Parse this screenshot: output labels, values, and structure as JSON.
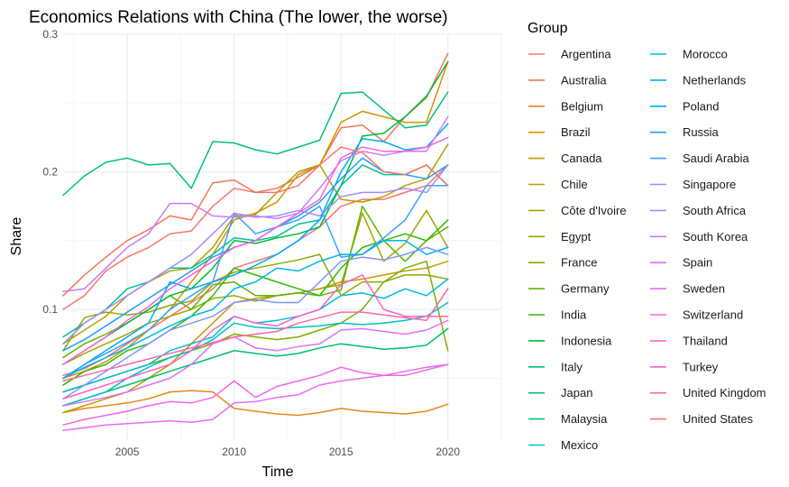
{
  "chart_data": {
    "type": "line",
    "title": "Economics Relations with China (The lower, the worse)",
    "xlabel": "Time",
    "ylabel": "Share",
    "legend_title": "Group",
    "legend_position": "right",
    "grid": true,
    "xlim": [
      2002,
      2022.5
    ],
    "ylim": [
      0.005,
      0.3
    ],
    "x_ticks": [
      2005,
      2010,
      2015,
      2020
    ],
    "y_ticks": [
      0.1,
      0.2,
      0.3
    ],
    "x": [
      2002,
      2003,
      2004,
      2005,
      2006,
      2007,
      2008,
      2009,
      2010,
      2011,
      2012,
      2013,
      2014,
      2015,
      2016,
      2017,
      2018,
      2019,
      2020
    ],
    "series": [
      {
        "name": "Argentina",
        "color": "#F8766D",
        "values": [
          0.052,
          0.057,
          0.065,
          0.075,
          0.085,
          0.095,
          0.105,
          0.115,
          0.13,
          0.135,
          0.14,
          0.15,
          0.16,
          0.175,
          0.18,
          0.18,
          0.185,
          0.19,
          0.205
        ]
      },
      {
        "name": "Australia",
        "color": "#F0765A",
        "values": [
          0.11,
          0.125,
          0.138,
          0.15,
          0.158,
          0.168,
          0.165,
          0.192,
          0.194,
          0.185,
          0.188,
          0.196,
          0.205,
          0.232,
          0.234,
          0.222,
          0.24,
          0.254,
          0.286
        ]
      },
      {
        "name": "Belgium",
        "color": "#E7861B",
        "values": [
          0.025,
          0.028,
          0.03,
          0.032,
          0.035,
          0.04,
          0.041,
          0.04,
          0.028,
          0.026,
          0.024,
          0.023,
          0.025,
          0.028,
          0.026,
          0.025,
          0.024,
          0.026,
          0.031
        ]
      },
      {
        "name": "Brazil",
        "color": "#D29200",
        "values": [
          0.05,
          0.055,
          0.062,
          0.072,
          0.085,
          0.1,
          0.12,
          0.14,
          0.165,
          0.17,
          0.178,
          0.198,
          0.205,
          0.236,
          0.244,
          0.24,
          0.236,
          0.236,
          0.28
        ]
      },
      {
        "name": "Canada",
        "color": "#C09B00",
        "values": [
          0.025,
          0.03,
          0.035,
          0.04,
          0.05,
          0.06,
          0.075,
          0.09,
          0.105,
          0.108,
          0.11,
          0.112,
          0.115,
          0.12,
          0.122,
          0.125,
          0.128,
          0.13,
          0.135
        ]
      },
      {
        "name": "Chile",
        "color": "#B3A000",
        "values": [
          0.075,
          0.085,
          0.095,
          0.11,
          0.12,
          0.128,
          0.13,
          0.145,
          0.168,
          0.169,
          0.185,
          0.2,
          0.205,
          0.18,
          0.178,
          0.182,
          0.19,
          0.195,
          0.22
        ]
      },
      {
        "name": "Côte d'Ivoire",
        "color": "#A3A500",
        "values": [
          0.06,
          0.068,
          0.075,
          0.082,
          0.09,
          0.095,
          0.1,
          0.108,
          0.11,
          0.106,
          0.11,
          0.112,
          0.115,
          0.118,
          0.17,
          0.135,
          0.148,
          0.172,
          0.145
        ]
      },
      {
        "name": "Egypt",
        "color": "#8FAA00",
        "values": [
          0.07,
          0.094,
          0.098,
          0.096,
          0.098,
          0.103,
          0.106,
          0.12,
          0.127,
          0.13,
          0.133,
          0.136,
          0.14,
          0.11,
          0.12,
          0.12,
          0.125,
          0.125,
          0.122
        ]
      },
      {
        "name": "France",
        "color": "#7CAE00",
        "values": [
          0.04,
          0.045,
          0.05,
          0.055,
          0.06,
          0.065,
          0.07,
          0.075,
          0.082,
          0.08,
          0.078,
          0.08,
          0.085,
          0.09,
          0.1,
          0.12,
          0.13,
          0.135,
          0.07
        ]
      },
      {
        "name": "Germany",
        "color": "#5EB300",
        "values": [
          0.065,
          0.075,
          0.082,
          0.09,
          0.1,
          0.11,
          0.1,
          0.118,
          0.12,
          0.11,
          0.11,
          0.112,
          0.11,
          0.114,
          0.175,
          0.15,
          0.135,
          0.15,
          0.16
        ]
      },
      {
        "name": "India",
        "color": "#2EB900",
        "values": [
          0.045,
          0.055,
          0.06,
          0.07,
          0.075,
          0.085,
          0.095,
          0.11,
          0.13,
          0.125,
          0.12,
          0.115,
          0.11,
          0.13,
          0.145,
          0.15,
          0.155,
          0.15,
          0.165
        ]
      },
      {
        "name": "Indonesia",
        "color": "#00BA38",
        "values": [
          0.06,
          0.07,
          0.08,
          0.09,
          0.1,
          0.11,
          0.115,
          0.13,
          0.15,
          0.148,
          0.152,
          0.155,
          0.16,
          0.19,
          0.226,
          0.228,
          0.24,
          0.255,
          0.28
        ]
      },
      {
        "name": "Italy",
        "color": "#00BE67",
        "values": [
          0.03,
          0.035,
          0.04,
          0.045,
          0.05,
          0.055,
          0.06,
          0.065,
          0.07,
          0.068,
          0.066,
          0.068,
          0.072,
          0.075,
          0.073,
          0.071,
          0.072,
          0.074,
          0.086
        ]
      },
      {
        "name": "Japan",
        "color": "#00BF7D",
        "values": [
          0.183,
          0.197,
          0.207,
          0.21,
          0.205,
          0.206,
          0.188,
          0.222,
          0.221,
          0.216,
          0.213,
          0.218,
          0.223,
          0.257,
          0.258,
          0.245,
          0.232,
          0.234,
          0.258
        ]
      },
      {
        "name": "Malaysia",
        "color": "#00C094",
        "values": [
          0.08,
          0.09,
          0.1,
          0.115,
          0.12,
          0.13,
          0.13,
          0.14,
          0.152,
          0.15,
          0.153,
          0.162,
          0.165,
          0.19,
          0.205,
          0.198,
          0.198,
          0.205,
          0.19
        ]
      },
      {
        "name": "Mexico",
        "color": "#00BFC4",
        "values": [
          0.03,
          0.035,
          0.04,
          0.05,
          0.058,
          0.065,
          0.07,
          0.078,
          0.09,
          0.087,
          0.086,
          0.087,
          0.088,
          0.09,
          0.089,
          0.09,
          0.092,
          0.095,
          0.105
        ]
      },
      {
        "name": "Morocco",
        "color": "#00BBDA",
        "values": [
          0.04,
          0.045,
          0.05,
          0.055,
          0.06,
          0.07,
          0.075,
          0.08,
          0.095,
          0.09,
          0.092,
          0.095,
          0.1,
          0.11,
          0.112,
          0.108,
          0.115,
          0.11,
          0.122
        ]
      },
      {
        "name": "Netherlands",
        "color": "#00B5EB",
        "values": [
          0.05,
          0.058,
          0.065,
          0.072,
          0.08,
          0.088,
          0.095,
          0.1,
          0.115,
          0.12,
          0.13,
          0.128,
          0.135,
          0.14,
          0.14,
          0.15,
          0.15,
          0.14,
          0.145
        ]
      },
      {
        "name": "Poland",
        "color": "#00A9FF",
        "values": [
          0.05,
          0.06,
          0.07,
          0.08,
          0.09,
          0.12,
          0.115,
          0.12,
          0.125,
          0.132,
          0.14,
          0.15,
          0.165,
          0.2,
          0.224,
          0.222,
          0.216,
          0.218,
          0.235
        ]
      },
      {
        "name": "Russia",
        "color": "#1E9EF8",
        "values": [
          0.07,
          0.078,
          0.088,
          0.098,
          0.108,
          0.118,
          0.128,
          0.138,
          0.145,
          0.15,
          0.16,
          0.168,
          0.178,
          0.195,
          0.21,
          0.2,
          0.198,
          0.195,
          0.205
        ]
      },
      {
        "name": "Saudi Arabia",
        "color": "#35A2FF",
        "values": [
          0.05,
          0.06,
          0.068,
          0.076,
          0.085,
          0.1,
          0.11,
          0.12,
          0.17,
          0.155,
          0.16,
          0.165,
          0.175,
          0.138,
          0.14,
          0.152,
          0.165,
          0.19,
          0.19
        ]
      },
      {
        "name": "Singapore",
        "color": "#8494FF",
        "values": [
          0.035,
          0.045,
          0.055,
          0.065,
          0.075,
          0.085,
          0.09,
          0.095,
          0.105,
          0.107,
          0.105,
          0.105,
          0.12,
          0.135,
          0.138,
          0.136,
          0.14,
          0.145,
          0.14
        ]
      },
      {
        "name": "South Africa",
        "color": "#A58AFF",
        "values": [
          0.075,
          0.09,
          0.1,
          0.11,
          0.12,
          0.13,
          0.14,
          0.155,
          0.17,
          0.167,
          0.168,
          0.172,
          0.168,
          0.182,
          0.185,
          0.185,
          0.188,
          0.185,
          0.205
        ]
      },
      {
        "name": "South Korea",
        "color": "#C77CFF",
        "values": [
          0.113,
          0.115,
          0.13,
          0.145,
          0.155,
          0.177,
          0.177,
          0.168,
          0.167,
          0.168,
          0.166,
          0.17,
          0.188,
          0.208,
          0.215,
          0.212,
          0.215,
          0.215,
          0.24
        ]
      },
      {
        "name": "Spain",
        "color": "#DC71FA",
        "values": [
          0.03,
          0.033,
          0.036,
          0.04,
          0.045,
          0.05,
          0.06,
          0.075,
          0.08,
          0.072,
          0.07,
          0.073,
          0.075,
          0.085,
          0.086,
          0.084,
          0.082,
          0.085,
          0.092
        ]
      },
      {
        "name": "Sweden",
        "color": "#E76BF3",
        "values": [
          0.012,
          0.014,
          0.016,
          0.017,
          0.018,
          0.019,
          0.018,
          0.02,
          0.032,
          0.033,
          0.036,
          0.038,
          0.045,
          0.048,
          0.05,
          0.052,
          0.055,
          0.058,
          0.06
        ]
      },
      {
        "name": "Switzerland",
        "color": "#F265E7",
        "values": [
          0.016,
          0.02,
          0.023,
          0.026,
          0.03,
          0.033,
          0.032,
          0.036,
          0.048,
          0.036,
          0.044,
          0.048,
          0.052,
          0.058,
          0.054,
          0.052,
          0.052,
          0.056,
          0.06
        ]
      },
      {
        "name": "Thailand",
        "color": "#FA62DB",
        "values": [
          0.06,
          0.07,
          0.08,
          0.092,
          0.102,
          0.115,
          0.125,
          0.135,
          0.145,
          0.15,
          0.16,
          0.17,
          0.18,
          0.21,
          0.218,
          0.215,
          0.215,
          0.218,
          0.225
        ]
      },
      {
        "name": "Turkey",
        "color": "#FF61C3",
        "values": [
          0.035,
          0.04,
          0.045,
          0.05,
          0.055,
          0.06,
          0.07,
          0.085,
          0.095,
          0.09,
          0.088,
          0.095,
          0.1,
          0.118,
          0.125,
          0.1,
          0.095,
          0.095,
          0.095
        ]
      },
      {
        "name": "United Kingdom",
        "color": "#FF67A4",
        "values": [
          0.048,
          0.052,
          0.056,
          0.06,
          0.064,
          0.068,
          0.072,
          0.076,
          0.08,
          0.082,
          0.084,
          0.09,
          0.094,
          0.098,
          0.098,
          0.096,
          0.094,
          0.092,
          0.115
        ]
      },
      {
        "name": "United States",
        "color": "#F8766D",
        "values": [
          0.1,
          0.11,
          0.128,
          0.138,
          0.145,
          0.155,
          0.157,
          0.175,
          0.188,
          0.185,
          0.185,
          0.19,
          0.205,
          0.218,
          0.214,
          0.2,
          0.198,
          0.205,
          0.19
        ]
      }
    ]
  }
}
